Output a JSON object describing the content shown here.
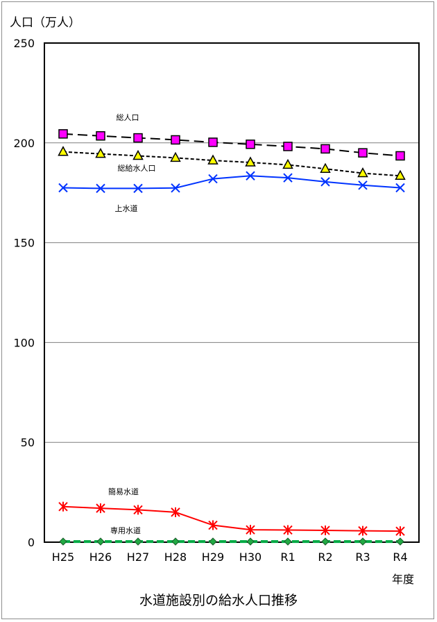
{
  "chart_data": {
    "type": "line",
    "title": "水道施設別の給水人口推移",
    "ylabel": "人口（万人）",
    "xlabel": "年度",
    "ylim": [
      0,
      250
    ],
    "yticks": [
      "0",
      "50",
      "100",
      "150",
      "200",
      "250"
    ],
    "categories": [
      "H25",
      "H26",
      "H27",
      "H28",
      "H29",
      "H30",
      "R1",
      "R2",
      "R3",
      "R4"
    ],
    "grid": true,
    "series": [
      {
        "name": "総人口",
        "color": "#000000",
        "dash": "long-dash",
        "marker": "square",
        "marker_fill": "#ff00ff",
        "values": [
          204.5,
          203.5,
          202.5,
          201.5,
          200.3,
          199.3,
          198.2,
          197.0,
          195.0,
          193.5
        ]
      },
      {
        "name": "総給水人口",
        "color": "#000000",
        "dash": "short-dash",
        "marker": "triangle",
        "marker_fill": "#ffff00",
        "values": [
          195.5,
          194.5,
          193.5,
          192.5,
          191.2,
          190.2,
          189.0,
          187.0,
          184.8,
          183.5
        ]
      },
      {
        "name": "上水道",
        "color": "#0033ff",
        "dash": "solid",
        "marker": "x",
        "marker_fill": "#0033ff",
        "values": [
          177.5,
          177.2,
          177.2,
          177.4,
          182.0,
          183.5,
          182.5,
          180.5,
          178.8,
          177.5
        ]
      },
      {
        "name": "簡易水道",
        "color": "#ff0000",
        "dash": "solid",
        "marker": "asterisk",
        "marker_fill": "#ff0000",
        "values": [
          17.8,
          17.0,
          16.2,
          15.0,
          8.5,
          6.2,
          6.1,
          5.9,
          5.7,
          5.5
        ]
      },
      {
        "name": "専用水道",
        "color": "#00aa44",
        "dash": "dash",
        "marker": "diamond",
        "marker_fill": "#22aa44",
        "values": [
          0.3,
          0.3,
          0.3,
          0.3,
          0.3,
          0.3,
          0.3,
          0.3,
          0.3,
          0.3
        ]
      }
    ]
  }
}
